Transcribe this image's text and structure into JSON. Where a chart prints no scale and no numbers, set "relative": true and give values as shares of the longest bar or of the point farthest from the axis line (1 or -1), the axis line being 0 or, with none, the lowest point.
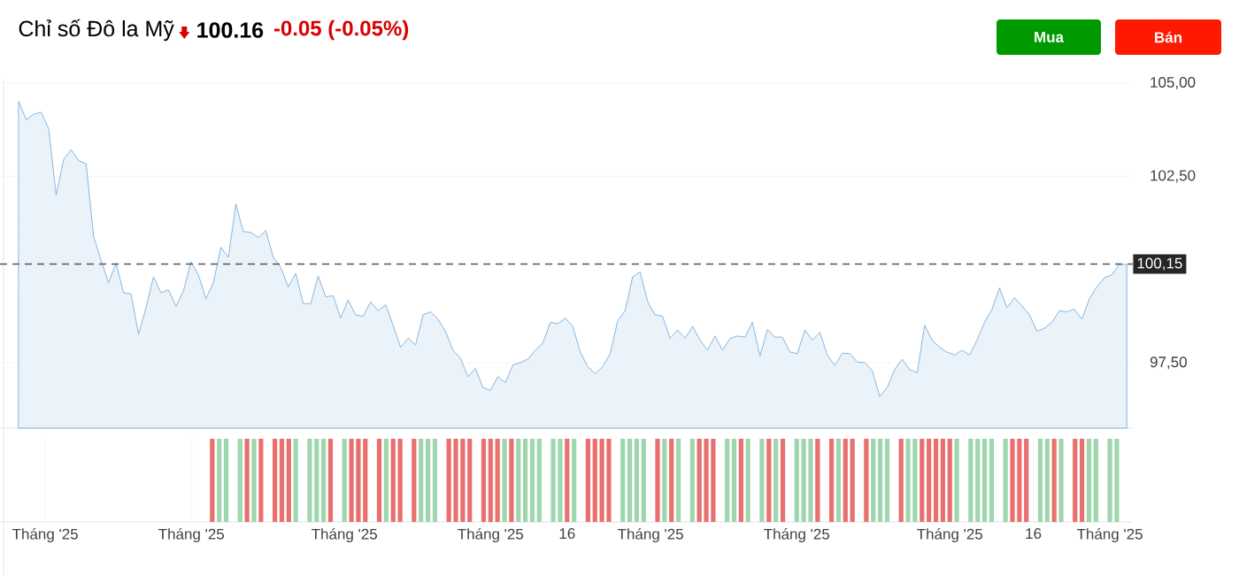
{
  "chart_data": [
    {
      "type": "area",
      "title": "Chỉ số Đô la Mỹ",
      "annotations": [
        "100.16",
        "-0.05 (-0.05%)",
        "Mua",
        "Bán"
      ],
      "categories": [
        null,
        null,
        null,
        null,
        null,
        null,
        null,
        null,
        null,
        null,
        null,
        null,
        null,
        null,
        null,
        null,
        null,
        null,
        null,
        null,
        null,
        null,
        null,
        null,
        null,
        null,
        null,
        null,
        null,
        null,
        null,
        null,
        null,
        null,
        null,
        null,
        null,
        null,
        null,
        null,
        null,
        null,
        null,
        null,
        null,
        null,
        null,
        null,
        null,
        null,
        null,
        null,
        null,
        null,
        null,
        null,
        null,
        null,
        null,
        null,
        null,
        null,
        null,
        null,
        null,
        null,
        null,
        null,
        null,
        null,
        null,
        null,
        null,
        null,
        null,
        null,
        null,
        null,
        null,
        null,
        null,
        null,
        null,
        null,
        null,
        null,
        null,
        null,
        null,
        null,
        null,
        null,
        null,
        null,
        null,
        null,
        null,
        null,
        null,
        null,
        null,
        null,
        null,
        null,
        null,
        null,
        null,
        null,
        null,
        null,
        null,
        null,
        null,
        null,
        null,
        null,
        null,
        null,
        null,
        null,
        null,
        null,
        null,
        null,
        null,
        null,
        null,
        null,
        null,
        null,
        null,
        null,
        null,
        null,
        null,
        null,
        null,
        null,
        null,
        null,
        null,
        null,
        null,
        null,
        null,
        null,
        null,
        null,
        null
      ],
      "series": [
        {
          "color": "#7aafdd",
          "values": [
            104.51,
            104.02,
            104.17,
            104.22,
            103.78,
            102.0,
            102.95,
            103.22,
            102.92,
            102.84,
            100.89,
            100.25,
            99.65,
            100.17,
            99.38,
            99.35,
            98.27,
            98.98,
            99.81,
            99.38,
            99.46,
            99.02,
            99.43,
            100.21,
            99.86,
            99.22,
            99.65,
            100.6,
            100.33,
            101.76,
            101.02,
            101.0,
            100.86,
            101.05,
            100.33,
            100.06,
            99.54,
            99.9,
            99.09,
            99.09,
            99.83,
            99.27,
            99.3,
            98.7,
            99.19,
            98.78,
            98.75,
            99.14,
            98.9,
            99.06,
            98.51,
            97.92,
            98.16,
            97.98,
            98.79,
            98.87,
            98.67,
            98.35,
            97.84,
            97.63,
            97.13,
            97.35,
            96.84,
            96.76,
            97.13,
            96.97,
            97.44,
            97.51,
            97.6,
            97.84,
            98.03,
            98.59,
            98.55,
            98.7,
            98.48,
            97.79,
            97.4,
            97.21,
            97.4,
            97.75,
            98.63,
            98.9,
            99.81,
            99.94,
            99.14,
            98.79,
            98.75,
            98.16,
            98.38,
            98.16,
            98.48,
            98.11,
            97.84,
            98.22,
            97.84,
            98.16,
            98.22,
            98.19,
            98.59,
            97.68,
            98.4,
            98.19,
            98.19,
            97.79,
            97.75,
            98.38,
            98.11,
            98.32,
            97.71,
            97.43,
            97.76,
            97.75,
            97.52,
            97.51,
            97.29,
            96.6,
            96.84,
            97.32,
            97.6,
            97.32,
            97.24,
            98.51,
            98.11,
            97.92,
            97.79,
            97.71,
            97.84,
            97.71,
            98.11,
            98.59,
            98.94,
            99.51,
            98.98,
            99.25,
            99.03,
            98.79,
            98.35,
            98.43,
            98.59,
            98.9,
            98.87,
            98.94,
            98.67,
            99.22,
            99.54,
            99.78,
            99.86,
            100.14,
            100.14
          ]
        }
      ],
      "ylim": [
        95.75,
        105
      ],
      "yticks": [
        {
          "value": 97.5,
          "label": "97,50"
        },
        {
          "value": 102.5,
          "label": "102,50"
        },
        {
          "value": 105,
          "label": "105,00"
        }
      ],
      "ref_lines": [
        {
          "axis": "y",
          "value": 100.15,
          "label": "100,15",
          "color": "#555555",
          "line_style": "dashed"
        }
      ],
      "grid": "y"
    },
    {
      "type": "bar",
      "relative": true,
      "categories": [
        null,
        null,
        null,
        null,
        "Tháng '25",
        null,
        null,
        null,
        null,
        null,
        null,
        null,
        null,
        null,
        null,
        null,
        null,
        null,
        null,
        null,
        null,
        null,
        null,
        null,
        null,
        "Tháng '25",
        null,
        null,
        null,
        null,
        null,
        null,
        null,
        null,
        null,
        null,
        null,
        null,
        null,
        null,
        null,
        null,
        null,
        null,
        null,
        null,
        null,
        "Tháng '25",
        null,
        null,
        null,
        null,
        null,
        null,
        null,
        null,
        null,
        null,
        null,
        null,
        null,
        null,
        null,
        null,
        null,
        null,
        null,
        null,
        "Tháng '25",
        null,
        null,
        null,
        null,
        null,
        null,
        null,
        null,
        null,
        null,
        "16",
        null,
        null,
        null,
        null,
        null,
        null,
        null,
        null,
        null,
        null,
        null,
        "Tháng '25",
        null,
        null,
        null,
        null,
        null,
        null,
        null,
        null,
        null,
        null,
        null,
        null,
        null,
        null,
        null,
        null,
        null,
        null,
        null,
        null,
        "Tháng '25",
        null,
        null,
        null,
        null,
        null,
        null,
        null,
        null,
        null,
        null,
        null,
        null,
        null,
        null,
        null,
        null,
        null,
        null,
        null,
        null,
        null,
        "Tháng '25",
        null,
        null,
        null,
        null,
        null,
        null,
        null,
        null,
        null,
        null,
        null,
        "16",
        null,
        null,
        null,
        null,
        null,
        null,
        null,
        null,
        null,
        null,
        "Tháng '25",
        null
      ],
      "values": [
        null,
        null,
        null,
        null,
        null,
        null,
        null,
        null,
        null,
        null,
        null,
        null,
        null,
        null,
        null,
        null,
        null,
        null,
        null,
        null,
        null,
        null,
        null,
        null,
        null,
        null,
        null,
        null,
        1,
        1,
        1,
        null,
        1,
        1,
        1,
        1,
        null,
        1,
        1,
        1,
        1,
        null,
        1,
        1,
        1,
        1,
        null,
        1,
        1,
        1,
        1,
        null,
        1,
        1,
        1,
        1,
        null,
        1,
        1,
        1,
        1,
        null,
        1,
        1,
        1,
        1,
        null,
        1,
        1,
        1,
        1,
        1,
        1,
        1,
        1,
        1,
        null,
        1,
        1,
        1,
        1,
        null,
        1,
        1,
        1,
        1,
        null,
        1,
        1,
        1,
        1,
        null,
        1,
        1,
        1,
        1,
        null,
        1,
        1,
        1,
        1,
        null,
        1,
        1,
        1,
        1,
        null,
        1,
        1,
        1,
        1,
        null,
        1,
        1,
        1,
        1,
        null,
        1,
        1,
        1,
        1,
        null,
        1,
        1,
        1,
        1,
        null,
        1,
        1,
        1,
        1,
        1,
        1,
        1,
        1,
        1,
        null,
        1,
        1,
        1,
        1,
        null,
        1,
        1,
        1,
        1,
        null,
        1,
        1,
        1,
        1,
        null,
        1,
        1,
        1,
        1,
        null,
        1,
        1
      ],
      "colors": [
        null,
        null,
        null,
        null,
        null,
        null,
        null,
        null,
        null,
        null,
        null,
        null,
        null,
        null,
        null,
        null,
        null,
        null,
        null,
        null,
        null,
        null,
        null,
        null,
        null,
        null,
        null,
        null,
        "#e8706e",
        "#9fd6ae",
        "#9fd6ae",
        null,
        "#9fd6ae",
        "#e8706e",
        "#9fd6ae",
        "#e8706e",
        null,
        "#e8706e",
        "#e8706e",
        "#e8706e",
        "#9fd6ae",
        null,
        "#9fd6ae",
        "#9fd6ae",
        "#9fd6ae",
        "#e8706e",
        null,
        "#9fd6ae",
        "#e8706e",
        "#e8706e",
        "#e8706e",
        null,
        "#e8706e",
        "#9fd6ae",
        "#e8706e",
        "#e8706e",
        null,
        "#e8706e",
        "#9fd6ae",
        "#9fd6ae",
        "#9fd6ae",
        null,
        "#e8706e",
        "#e8706e",
        "#e8706e",
        "#e8706e",
        null,
        "#e8706e",
        "#e8706e",
        "#e8706e",
        "#9fd6ae",
        "#e8706e",
        "#9fd6ae",
        "#9fd6ae",
        "#9fd6ae",
        "#9fd6ae",
        null,
        "#9fd6ae",
        "#9fd6ae",
        "#e8706e",
        "#9fd6ae",
        null,
        "#e8706e",
        "#e8706e",
        "#e8706e",
        "#e8706e",
        null,
        "#9fd6ae",
        "#9fd6ae",
        "#9fd6ae",
        "#9fd6ae",
        null,
        "#e8706e",
        "#9fd6ae",
        "#e8706e",
        "#9fd6ae",
        null,
        "#9fd6ae",
        "#e8706e",
        "#e8706e",
        "#e8706e",
        null,
        "#9fd6ae",
        "#9fd6ae",
        "#e8706e",
        "#9fd6ae",
        null,
        "#9fd6ae",
        "#e8706e",
        "#9fd6ae",
        "#e8706e",
        null,
        "#9fd6ae",
        "#9fd6ae",
        "#9fd6ae",
        "#e8706e",
        null,
        "#e8706e",
        "#9fd6ae",
        "#e8706e",
        "#e8706e",
        null,
        "#e8706e",
        "#9fd6ae",
        "#9fd6ae",
        "#9fd6ae",
        null,
        "#e8706e",
        "#9fd6ae",
        "#9fd6ae",
        "#e8706e",
        "#e8706e",
        "#e8706e",
        "#e8706e",
        "#e8706e",
        "#9fd6ae",
        null,
        "#9fd6ae",
        "#9fd6ae",
        "#9fd6ae",
        "#9fd6ae",
        null,
        "#9fd6ae",
        "#e8706e",
        "#e8706e",
        "#e8706e",
        null,
        "#9fd6ae",
        "#9fd6ae",
        "#e8706e",
        "#9fd6ae",
        null,
        "#e8706e",
        "#e8706e",
        "#9fd6ae",
        "#9fd6ae",
        null,
        "#9fd6ae",
        "#9fd6ae"
      ],
      "grid": true
    }
  ]
}
